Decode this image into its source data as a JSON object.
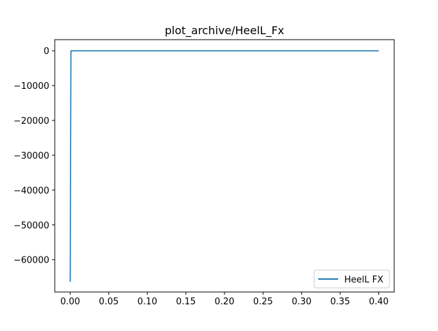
{
  "chart_data": {
    "type": "line",
    "title": "plot_archive/HeelL_Fx",
    "xlabel": "",
    "ylabel": "",
    "xlim": [
      -0.02,
      0.42
    ],
    "ylim": [
      -69280,
      3190
    ],
    "xticks": [
      0.0,
      0.05,
      0.1,
      0.15,
      0.2,
      0.25,
      0.3,
      0.35,
      0.4
    ],
    "xtick_labels": [
      "0.00",
      "0.05",
      "0.10",
      "0.15",
      "0.20",
      "0.25",
      "0.30",
      "0.35",
      "0.40"
    ],
    "yticks": [
      0,
      -10000,
      -20000,
      -30000,
      -40000,
      -50000,
      -60000
    ],
    "ytick_labels": [
      "0",
      "−10000",
      "−20000",
      "−30000",
      "−40000",
      "−50000",
      "−60000"
    ],
    "grid": false,
    "legend_position": "lower-right",
    "series": [
      {
        "name": "HeelL FX",
        "color": "#1f77b4",
        "x": [
          0.0,
          0.001,
          0.4
        ],
        "y": [
          -66350,
          -20,
          -20
        ]
      }
    ]
  }
}
